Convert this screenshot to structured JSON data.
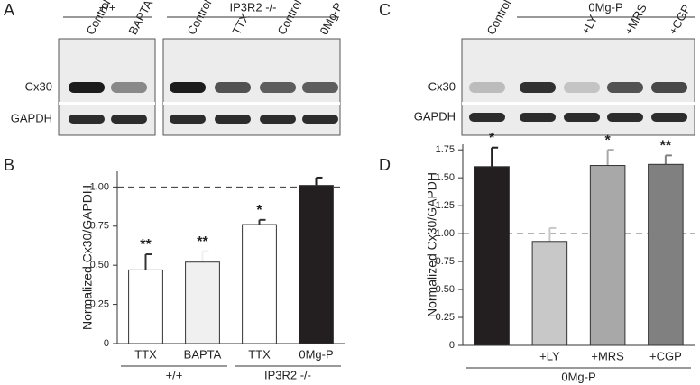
{
  "panels": {
    "a": "A",
    "b": "B",
    "c": "C",
    "d": "D"
  },
  "blot_a": {
    "groups": [
      "+/+",
      "IP3R2 -/-"
    ],
    "lanes": [
      "Control",
      "BAPTA",
      "Control",
      "TTX",
      "Control",
      "0Mg-P"
    ],
    "rows": [
      "Cx30",
      "GAPDH"
    ]
  },
  "blot_c": {
    "group": "0Mg-P",
    "lanes": [
      "Control",
      null,
      "+LY",
      "+MRS",
      "+CGP"
    ],
    "rows": [
      "Cx30",
      "GAPDH"
    ]
  },
  "chart_data": [
    {
      "type": "bar",
      "y_label": "Normalized Cx30/GAPDH",
      "categories": [
        "TTX",
        "BAPTA",
        "TTX",
        "0Mg-P"
      ],
      "groups": [
        "+/+",
        "IP3R2 -/-"
      ],
      "values": [
        0.47,
        0.52,
        0.76,
        1.01
      ],
      "errors": [
        0.1,
        0.07,
        0.03,
        0.05
      ],
      "annotations": [
        "**",
        "**",
        "*",
        null
      ],
      "colors": [
        "#ffffff",
        "#f0f0f0",
        "#ffffff",
        "#231f20"
      ],
      "ylim": [
        0,
        1.1
      ],
      "yticks": [
        0,
        0.25,
        {
          "value": 0.5,
          "label": "0.50"
        },
        0.75,
        {
          "value": 1,
          "label": "1.00"
        }
      ],
      "reference_line": 1
    },
    {
      "type": "bar",
      "y_label": "Normalized Cx30/GAPDH",
      "categories": [
        null,
        "+LY",
        "+MRS",
        "+CGP"
      ],
      "groups": [
        "0Mg-P"
      ],
      "values": [
        1.6,
        0.93,
        1.61,
        1.62
      ],
      "errors": [
        0.17,
        0.12,
        0.14,
        0.08
      ],
      "annotations": [
        "*",
        null,
        "*",
        "**"
      ],
      "colors": [
        "#231f20",
        "#c8c8c8",
        "#a8a8a8",
        "#808080"
      ],
      "ylim": [
        0,
        1.8
      ],
      "yticks": [
        0,
        0.25,
        {
          "value": 0.5,
          "label": "0.50"
        },
        0.75,
        {
          "value": 1,
          "label": "1.00"
        },
        1.25,
        {
          "value": 1.5,
          "label": "1.50"
        },
        1.75
      ],
      "reference_line": 1
    }
  ]
}
